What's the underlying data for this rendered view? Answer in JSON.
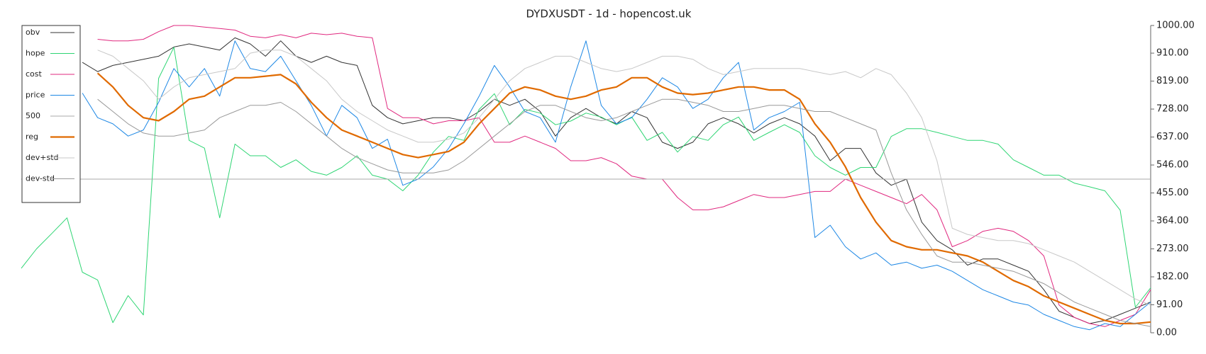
{
  "chart_data": {
    "type": "line",
    "title": "DYDXUSDT - 1d - hopencost.uk",
    "ylim": [
      0,
      1000
    ],
    "yticks": [
      {
        "value": 0,
        "label": "0.00"
      },
      {
        "value": 91,
        "label": "91.00"
      },
      {
        "value": 182,
        "label": "182.00"
      },
      {
        "value": 273,
        "label": "273.00"
      },
      {
        "value": 364,
        "label": "364.00"
      },
      {
        "value": 455,
        "label": "455.00"
      },
      {
        "value": 546,
        "label": "546.00"
      },
      {
        "value": 637,
        "label": "637.00"
      },
      {
        "value": 728,
        "label": "728.00"
      },
      {
        "value": 819,
        "label": "819.00"
      },
      {
        "value": 910,
        "label": "910.00"
      },
      {
        "value": 1000,
        "label": "1000.00"
      }
    ],
    "y_axis_side": "right",
    "grid": false,
    "legend": "upper left",
    "series": [
      {
        "name": "obv",
        "color": "#333333",
        "width": 1,
        "values": [
          null,
          null,
          null,
          null,
          880,
          850,
          870,
          880,
          890,
          900,
          930,
          940,
          930,
          920,
          960,
          940,
          900,
          950,
          900,
          880,
          900,
          880,
          870,
          740,
          700,
          680,
          690,
          700,
          700,
          690,
          720,
          760,
          740,
          760,
          720,
          640,
          700,
          730,
          700,
          680,
          720,
          700,
          620,
          600,
          620,
          680,
          700,
          680,
          650,
          680,
          700,
          680,
          640,
          560,
          600,
          600,
          520,
          480,
          500,
          360,
          300,
          270,
          220,
          240,
          240,
          220,
          200,
          140,
          70,
          50,
          30,
          40,
          60,
          80,
          100
        ]
      },
      {
        "name": "hope",
        "color": "#2ed573",
        "width": 1,
        "values": [
          210,
          273,
          323,
          374,
          197,
          172,
          33,
          121,
          58,
          828,
          929,
          626,
          601,
          374,
          614,
          576,
          576,
          538,
          563,
          525,
          513,
          538,
          576,
          513,
          500,
          462,
          513,
          588,
          639,
          626,
          727,
          778,
          677,
          727,
          715,
          677,
          689,
          715,
          702,
          677,
          702,
          626,
          652,
          588,
          639,
          626,
          677,
          702,
          626,
          652,
          677,
          652,
          576,
          538,
          513,
          538,
          538,
          639,
          664,
          664,
          652,
          639,
          626,
          626,
          614,
          563,
          538,
          513,
          513,
          487,
          475,
          462,
          399,
          83,
          146
        ]
      },
      {
        "name": "cost",
        "color": "#e0287f",
        "width": 1,
        "values": [
          null,
          null,
          null,
          null,
          null,
          955,
          950,
          950,
          955,
          980,
          1000,
          1000,
          995,
          990,
          985,
          965,
          960,
          970,
          960,
          975,
          970,
          975,
          965,
          960,
          730,
          700,
          700,
          680,
          690,
          690,
          700,
          620,
          620,
          640,
          620,
          600,
          560,
          560,
          570,
          550,
          510,
          500,
          500,
          440,
          400,
          400,
          410,
          430,
          450,
          440,
          440,
          450,
          460,
          460,
          500,
          480,
          460,
          440,
          420,
          450,
          400,
          280,
          300,
          330,
          340,
          330,
          300,
          250,
          90,
          50,
          30,
          20,
          40,
          60,
          140
        ]
      },
      {
        "name": "price",
        "color": "#1e88e5",
        "width": 1,
        "values": [
          null,
          null,
          null,
          null,
          780,
          700,
          680,
          640,
          660,
          750,
          860,
          800,
          860,
          770,
          950,
          860,
          850,
          900,
          820,
          740,
          640,
          740,
          700,
          600,
          630,
          480,
          500,
          540,
          600,
          680,
          770,
          870,
          800,
          720,
          700,
          620,
          800,
          950,
          740,
          680,
          700,
          760,
          830,
          800,
          730,
          760,
          830,
          880,
          660,
          700,
          720,
          750,
          310,
          350,
          280,
          240,
          260,
          220,
          230,
          210,
          220,
          200,
          170,
          140,
          120,
          100,
          90,
          60,
          40,
          20,
          10,
          30,
          20,
          60,
          100
        ]
      },
      {
        "name": "500",
        "color": "#aaaaaa",
        "width": 1,
        "values": [
          500,
          500,
          500,
          500,
          500,
          500,
          500,
          500,
          500,
          500,
          500,
          500,
          500,
          500,
          500,
          500,
          500,
          500,
          500,
          500,
          500,
          500,
          500,
          500,
          500,
          500,
          500,
          500,
          500,
          500,
          500,
          500,
          500,
          500,
          500,
          500,
          500,
          500,
          500,
          500,
          500,
          500,
          500,
          500,
          500,
          500,
          500,
          500,
          500,
          500,
          500,
          500,
          500,
          500,
          500,
          500,
          500,
          500,
          500,
          500,
          500,
          500,
          500,
          500,
          500,
          500,
          500,
          500,
          500,
          500,
          500,
          500,
          500,
          500,
          500
        ]
      },
      {
        "name": "reg",
        "color": "#e06a00",
        "width": 2.2,
        "values": [
          null,
          null,
          null,
          null,
          null,
          845,
          800,
          740,
          700,
          690,
          720,
          760,
          770,
          800,
          830,
          830,
          835,
          840,
          810,
          750,
          700,
          660,
          640,
          620,
          600,
          580,
          570,
          580,
          590,
          620,
          680,
          730,
          780,
          800,
          790,
          770,
          760,
          770,
          790,
          800,
          830,
          830,
          800,
          780,
          775,
          780,
          790,
          800,
          800,
          790,
          790,
          760,
          680,
          620,
          540,
          440,
          360,
          300,
          280,
          270,
          270,
          260,
          250,
          230,
          200,
          170,
          150,
          120,
          100,
          80,
          60,
          40,
          30,
          30,
          35
        ]
      },
      {
        "name": "dev+std",
        "color": "#c8c8c8",
        "width": 1,
        "values": [
          null,
          null,
          null,
          null,
          null,
          920,
          900,
          860,
          820,
          760,
          800,
          830,
          840,
          850,
          860,
          910,
          920,
          920,
          900,
          860,
          820,
          760,
          720,
          690,
          660,
          640,
          620,
          620,
          630,
          650,
          700,
          760,
          820,
          860,
          880,
          900,
          900,
          880,
          860,
          850,
          860,
          880,
          900,
          900,
          890,
          860,
          840,
          850,
          860,
          860,
          860,
          860,
          850,
          840,
          850,
          830,
          860,
          840,
          780,
          700,
          560,
          340,
          320,
          310,
          300,
          300,
          290,
          270,
          250,
          230,
          200,
          170,
          140,
          110,
          90
        ]
      },
      {
        "name": "dev-std",
        "color": "#999999",
        "width": 1,
        "values": [
          null,
          null,
          null,
          null,
          null,
          760,
          720,
          680,
          650,
          640,
          640,
          650,
          660,
          700,
          720,
          740,
          740,
          750,
          720,
          680,
          640,
          600,
          570,
          550,
          530,
          520,
          520,
          520,
          530,
          560,
          600,
          640,
          680,
          720,
          740,
          740,
          720,
          700,
          690,
          700,
          720,
          740,
          760,
          760,
          750,
          740,
          720,
          720,
          730,
          740,
          740,
          730,
          720,
          720,
          700,
          680,
          660,
          520,
          400,
          320,
          250,
          230,
          230,
          220,
          210,
          200,
          180,
          160,
          130,
          100,
          80,
          60,
          40,
          30,
          20
        ]
      }
    ]
  }
}
